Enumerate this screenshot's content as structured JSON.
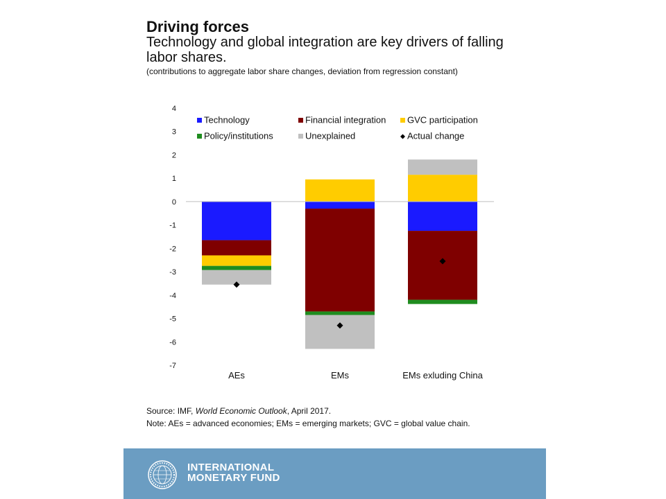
{
  "header": {
    "title": "Driving forces",
    "subtitle": "Technology and global integration are key drivers of falling labor shares.",
    "note": "(contributions to aggregate labor share changes, deviation from regression constant)"
  },
  "footer": {
    "source_prefix": "Source: IMF, ",
    "source_title": "World Economic Outlook",
    "source_suffix": ", April 2017.",
    "note": "Note: AEs = advanced economies; EMs = emerging markets; GVC = global value chain.",
    "org_line1": "INTERNATIONAL",
    "org_line2": "MONETARY FUND",
    "seal_text": "INTERNATIONAL MONETARY FUND",
    "bg_color": "#6b9dc2"
  },
  "chart_data": {
    "type": "bar",
    "stacked": true,
    "categories": [
      "AEs",
      "EMs",
      "EMs exluding China"
    ],
    "ylim": [
      -7,
      4
    ],
    "yticks": [
      4,
      3,
      2,
      1,
      0,
      -1,
      -2,
      -3,
      -4,
      -5,
      -6,
      -7
    ],
    "legend_position": "top",
    "series": [
      {
        "name": "Technology",
        "color": "#1a1aff",
        "values": [
          -1.65,
          -0.3,
          -1.25
        ]
      },
      {
        "name": "Financial integration",
        "color": "#7f0000",
        "values": [
          -0.65,
          -4.4,
          -2.95
        ]
      },
      {
        "name": "GVC participation",
        "color": "#ffcc00",
        "values": [
          -0.45,
          0.95,
          1.15
        ]
      },
      {
        "name": "Policy/institutions",
        "color": "#1f8c1f",
        "values": [
          -0.18,
          -0.15,
          -0.18
        ]
      },
      {
        "name": "Unexplained",
        "color": "#c0c0c0",
        "values": [
          -0.62,
          -1.45,
          0.65
        ]
      }
    ],
    "actual_change": {
      "name": "Actual change",
      "color": "#000000",
      "values": [
        -3.55,
        -5.3,
        -2.55
      ]
    }
  }
}
